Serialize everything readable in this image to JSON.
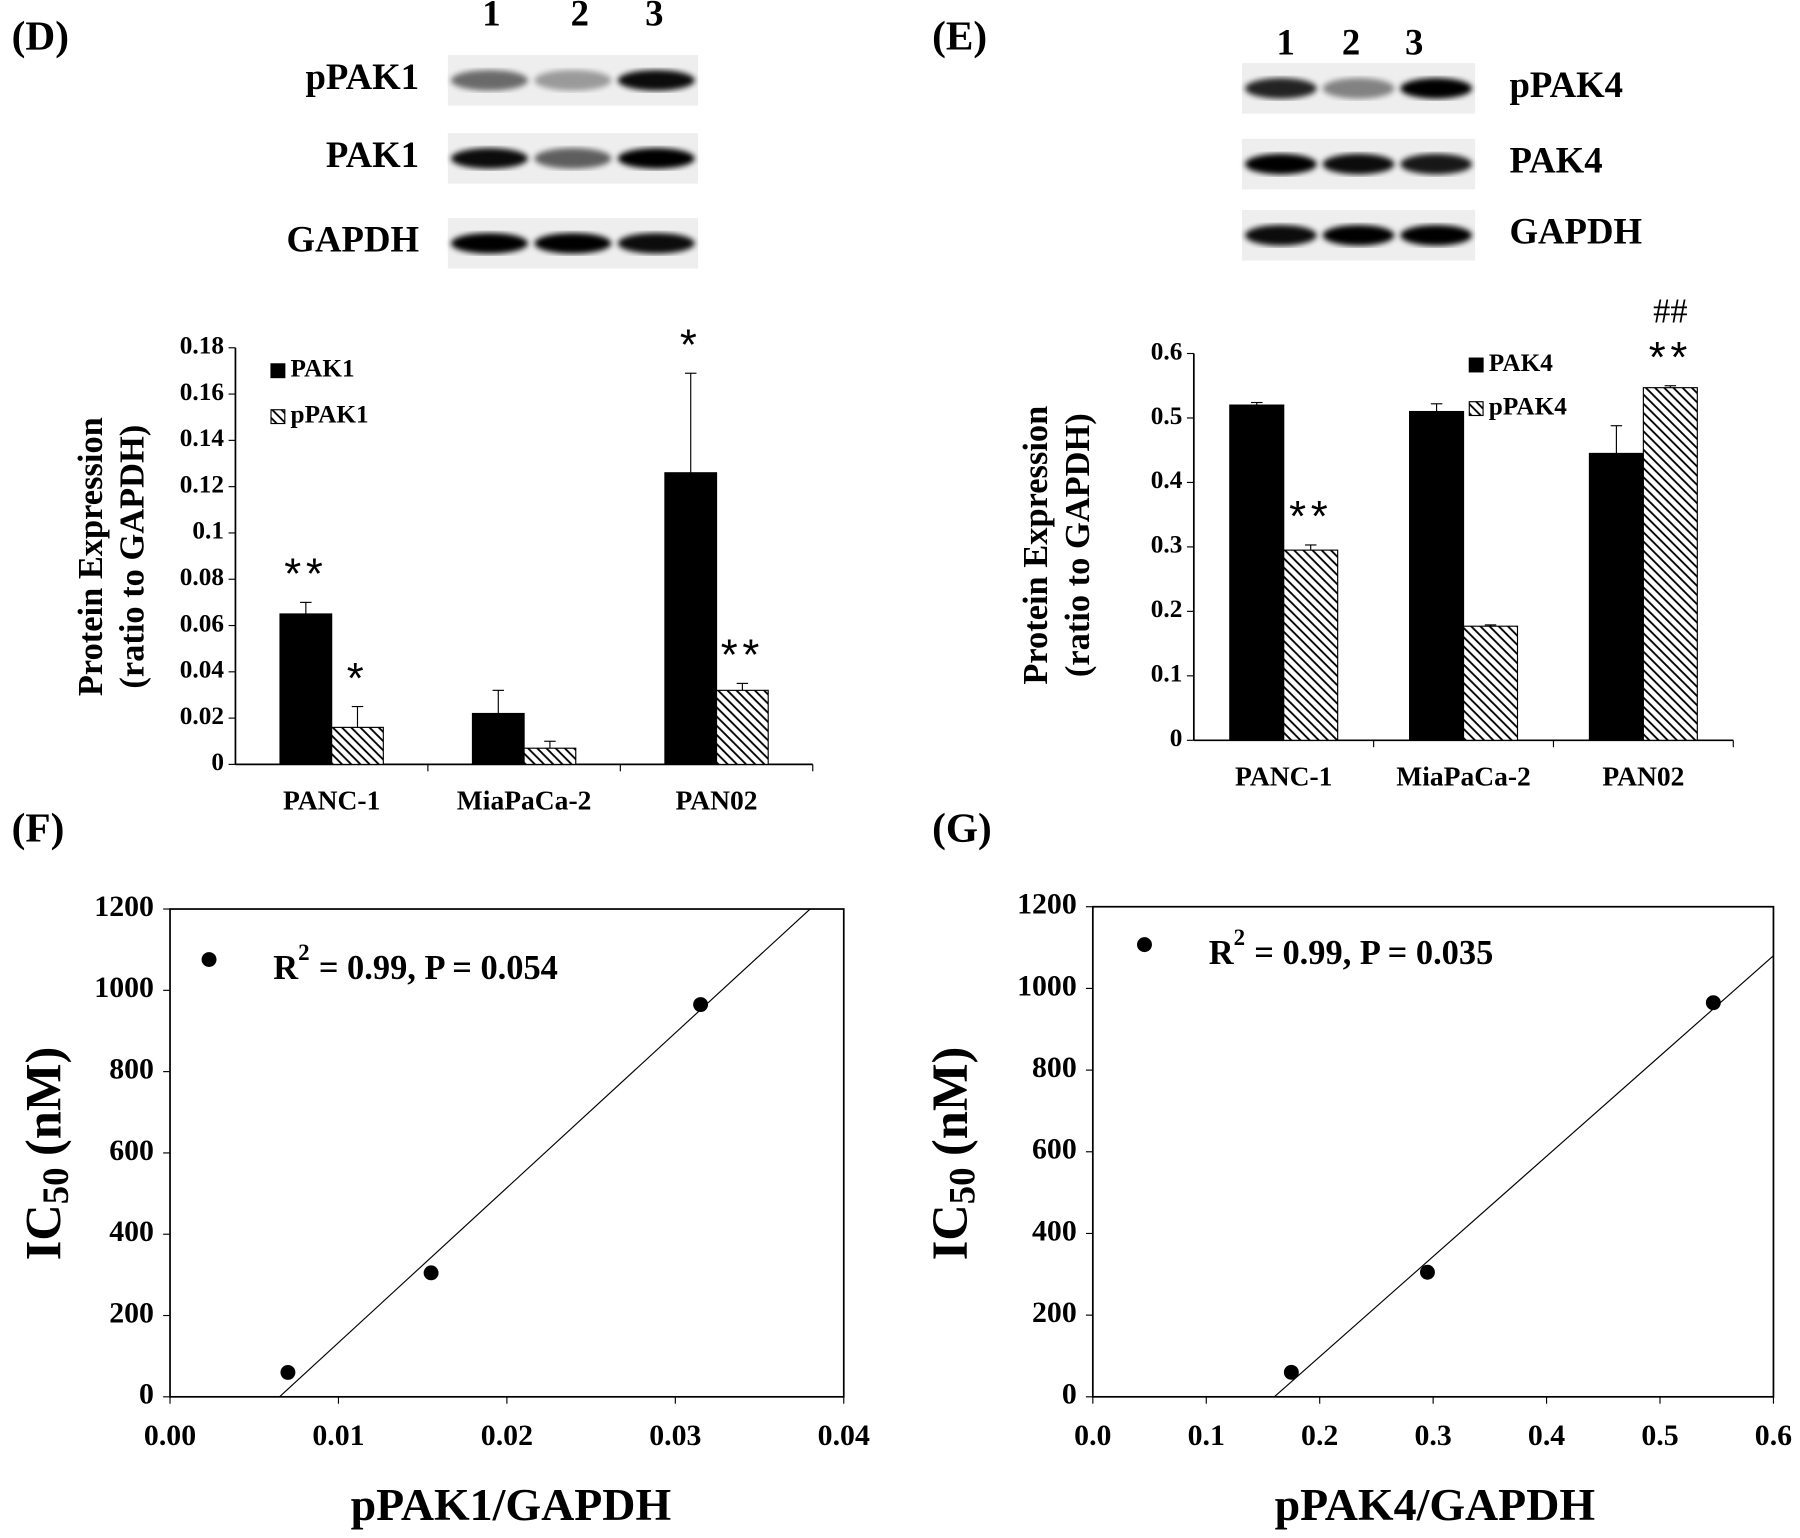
{
  "blots": [
    {
      "panel_label": "(D)",
      "lanes": [
        "1",
        "2",
        "3"
      ],
      "rows": [
        "pPAK1",
        "PAK1",
        "GAPDH"
      ]
    },
    {
      "panel_label": "(E)",
      "lanes": [
        "1",
        "2",
        "3"
      ],
      "rows": [
        "pPAK4",
        "PAK4",
        "GAPDH"
      ]
    }
  ],
  "chart_data": [
    {
      "type": "bar",
      "ylabel": [
        "Protein Expression",
        "(ratio to GAPDH)"
      ],
      "categories": [
        "PANC-1",
        "MiaPaCa-2",
        "PAN02"
      ],
      "ylim": [
        0,
        0.18
      ],
      "yticks": [
        0,
        0.02,
        0.04,
        0.06,
        0.08,
        0.1,
        0.12,
        0.14,
        0.16,
        0.18
      ],
      "series": [
        {
          "name": "PAK1",
          "color": "#000000",
          "values": [
            0.065,
            0.022,
            0.126
          ],
          "errors": [
            0.005,
            0.01,
            0.043
          ],
          "significance": [
            "**",
            null,
            "*"
          ]
        },
        {
          "name": "pPAK1",
          "color": "#000000",
          "pattern": "hatch",
          "values": [
            0.016,
            0.007,
            0.032
          ],
          "errors": [
            0.009,
            0.003,
            0.003
          ],
          "significance": [
            "*",
            null,
            "**"
          ]
        }
      ]
    },
    {
      "type": "bar",
      "ylabel": [
        "Protein Expression",
        "(ratio to GAPDH)"
      ],
      "categories": [
        "PANC-1",
        "MiaPaCa-2",
        "PAN02"
      ],
      "ylim": [
        0,
        0.6
      ],
      "yticks": [
        0,
        0.1,
        0.2,
        0.3,
        0.4,
        0.5,
        0.6
      ],
      "series": [
        {
          "name": "PAK4",
          "color": "#000000",
          "values": [
            0.52,
            0.51,
            0.445
          ],
          "errors": [
            0.004,
            0.012,
            0.043
          ],
          "significance": [
            null,
            null,
            null
          ]
        },
        {
          "name": "pPAK4",
          "color": "#000000",
          "pattern": "hatch",
          "values": [
            0.295,
            0.177,
            0.547
          ],
          "errors": [
            0.008,
            0.002,
            0.003
          ],
          "significance": [
            "**",
            null,
            "**"
          ],
          "comparison": [
            null,
            null,
            "##"
          ]
        }
      ]
    },
    {
      "type": "scatter",
      "panel_label": "(F)",
      "xlabel": "pPAK1/GAPDH",
      "ylabel": [
        "IC",
        "50",
        "(nM)"
      ],
      "annotation": [
        "R",
        "2",
        "= 0.99, P = 0.054"
      ],
      "x": [
        0.007,
        0.0155,
        0.0315
      ],
      "y": [
        60,
        305,
        965
      ],
      "color": "#000000",
      "trendline": {
        "x": [
          0.0065,
          0.038
        ],
        "y": [
          0,
          1200
        ]
      },
      "xlim": [
        0,
        0.04
      ],
      "xticks": [
        {
          "value": 0,
          "label": "0.00"
        },
        0.01,
        0.02,
        0.03,
        0.04
      ],
      "ylim": [
        0,
        1200
      ],
      "yticks": [
        0,
        200,
        400,
        600,
        800,
        1000,
        1200
      ]
    },
    {
      "type": "scatter",
      "panel_label": "(G)",
      "xlabel": "pPAK4/GAPDH",
      "ylabel": [
        "IC",
        "50",
        "(nM)"
      ],
      "annotation": [
        "R",
        "2",
        "= 0.99, P = 0.035"
      ],
      "x": [
        0.175,
        0.295,
        0.547
      ],
      "y": [
        60,
        305,
        965
      ],
      "color": "#000000",
      "trendline": {
        "x": [
          0.16,
          0.6
        ],
        "y": [
          0,
          1080
        ]
      },
      "xlim": [
        0,
        0.6
      ],
      "xticks": [
        {
          "value": 0,
          "label": "0.0"
        },
        0.1,
        0.2,
        0.3,
        0.4,
        0.5,
        0.6
      ],
      "ylim": [
        0,
        1200
      ],
      "yticks": [
        0,
        200,
        400,
        600,
        800,
        1000,
        1200
      ]
    }
  ]
}
